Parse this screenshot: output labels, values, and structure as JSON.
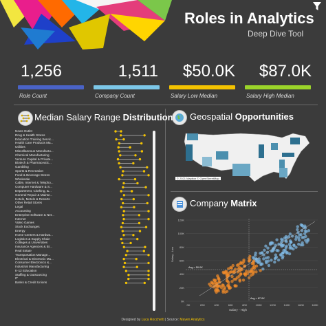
{
  "header": {
    "title": "Roles in Analytics",
    "subtitle": "Deep Dive Tool",
    "filter_icon": "filter-icon"
  },
  "kpis": [
    {
      "value": "1,256",
      "label": "Role Count",
      "color": "#4a63c7"
    },
    {
      "value": "1,511",
      "label": "Company Count",
      "color": "#7cc7e8"
    },
    {
      "value": "$50.0K",
      "label": "Salary Low Median",
      "color": "#f3c200"
    },
    {
      "value": "$87.0K",
      "label": "Salary High Median",
      "color": "#9bd42a"
    }
  ],
  "salary_section": {
    "title_prefix": "Median Salary Range ",
    "title_bold": "Distribution",
    "icon": "dumbbell-chart-icon",
    "industries": [
      "News Outlet",
      "Drug & Health Stores",
      "Education Training Servic...",
      "Health Care Products Ma...",
      "Utilities",
      "Miscellaneous Manufactu...",
      "Chemical Manufacturing",
      "Venture Capital & Private...",
      "Biotech & Pharmaceutic...",
      "Gambling",
      "Sports & Recreation",
      "Food & Beverage Stores",
      "Wholesale",
      "Cable, Internet & Telepho...",
      "Computer Hardware & S...",
      "Department, Clothing, &...",
      "General Repair & Mainte...",
      "Hotels, Motels & Resorts",
      "Other Retail Stores",
      "Legal",
      "Accounting",
      "Enterprise Software & Net...",
      "Internet",
      "Video Games",
      "Stock Exchanges",
      "Energy",
      "Home Centers & Hardwa...",
      "Logistics & Supply Chain",
      "Colleges & Universities",
      "Insurance Agencies & Br...",
      "Real Estate",
      "Transportation Manage...",
      "Electrical & Electronic Ma...",
      "Consumer Electronics &...",
      "Industrial Manufacturing",
      "K-12 Education",
      "Staffing & Outsourcing",
      "IT",
      "Banks & Credit Unions"
    ]
  },
  "geo_section": {
    "title_prefix": "Geospatial ",
    "title_bold": "Opportunities",
    "icon": "globe-icon",
    "copyright": "© 2021 Mapbox © OpenStreetMap"
  },
  "matrix_section": {
    "title_prefix": "Company ",
    "title_bold": "Matrix",
    "icon": "matrix-chart-icon",
    "y_ticks": [
      "120K",
      "100K",
      "80K",
      "60K",
      "40K",
      "20K",
      "0K"
    ],
    "x_ticks": [
      "0K",
      "20K",
      "40K",
      "60K",
      "80K",
      "100K",
      "120K",
      "140K",
      "160K",
      "180K"
    ],
    "y_label": "Salary - Low",
    "x_label": "Salary - High",
    "ref_y": "Avg = 50.0K",
    "ref_x": "Avg = 87.0K"
  },
  "footer": {
    "prefix": "Designed by ",
    "author": "Luca Rocchetti",
    "mid": " | Source: ",
    "source": "Maven Analytics"
  },
  "colors": {
    "background": "#3b3b3b",
    "dumbbell_low": "#f3c200",
    "dumbbell_high": "#f3c200",
    "map_fill": "#3f7f9c",
    "scatter_low": "#f28b2a",
    "scatter_high": "#7fb8e3"
  }
}
